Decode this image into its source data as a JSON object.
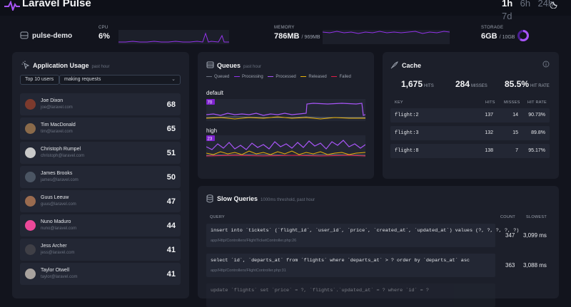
{
  "app": {
    "title": "Laravel Pulse"
  },
  "periods": [
    {
      "label": "1h",
      "active": true
    },
    {
      "label": "6h",
      "active": false
    },
    {
      "label": "24h",
      "active": false
    },
    {
      "label": "7d",
      "active": false
    }
  ],
  "servers": {
    "name": "pulse-demo",
    "cpu": {
      "label": "CPU",
      "value": "6%"
    },
    "memory": {
      "label": "MEMORY",
      "value": "786MB",
      "total": "/ 969MB"
    },
    "storage": {
      "label": "STORAGE",
      "value": "6GB",
      "total": "/ 10GB",
      "percent": 60
    }
  },
  "usage": {
    "title": "Application Usage",
    "period": "past hour",
    "limit_select": "Top 10 users",
    "type_select": "making requests",
    "users": [
      {
        "name": "Joe Dixon",
        "email": "joe@laravel.com",
        "count": "68",
        "avatar_color": "#7c3a2d"
      },
      {
        "name": "Tim MacDonald",
        "email": "tim@laravel.com",
        "count": "65",
        "avatar_color": "#8a6a4a"
      },
      {
        "name": "Christoph Rumpel",
        "email": "christoph@laravel.com",
        "count": "51",
        "avatar_color": "#c9c9c9"
      },
      {
        "name": "James Brooks",
        "email": "james@laravel.com",
        "count": "50",
        "avatar_color": "#4b5563"
      },
      {
        "name": "Guus Leeuw",
        "email": "guus@laravel.com",
        "count": "47",
        "avatar_color": "#9a6b4f"
      },
      {
        "name": "Nuno Maduro",
        "email": "nuno@laravel.com",
        "count": "44",
        "avatar_color": "#ec4899"
      },
      {
        "name": "Jess Archer",
        "email": "jess@laravel.com",
        "count": "41",
        "avatar_color": "#3f3f46"
      },
      {
        "name": "Taylor Otwell",
        "email": "taylor@laravel.com",
        "count": "41",
        "avatar_color": "#a8a29e"
      }
    ]
  },
  "queues": {
    "title": "Queues",
    "period": "past hour",
    "legend": [
      {
        "label": "Queued",
        "color": "#6b7280"
      },
      {
        "label": "Processing",
        "color": "#9333ea"
      },
      {
        "label": "Processed",
        "color": "#a855f7"
      },
      {
        "label": "Released",
        "color": "#eab308"
      },
      {
        "label": "Failed",
        "color": "#e11d48"
      }
    ],
    "items": [
      {
        "name": "default",
        "badge": "70"
      },
      {
        "name": "high",
        "badge": "23"
      }
    ]
  },
  "cache": {
    "title": "Cache",
    "hits": "1,675",
    "hits_label": "HITS",
    "misses": "284",
    "misses_label": "MISSES",
    "hit_rate": "85.5%",
    "hit_rate_label": "HIT RATE",
    "columns": [
      "KEY",
      "HITS",
      "MISSES",
      "HIT RATE"
    ],
    "rows": [
      {
        "key": "flight:2",
        "hits": "137",
        "misses": "14",
        "rate": "90.73%"
      },
      {
        "key": "flight:3",
        "hits": "132",
        "misses": "15",
        "rate": "89.8%"
      },
      {
        "key": "flight:8",
        "hits": "138",
        "misses": "7",
        "rate": "95.17%"
      }
    ]
  },
  "slow_queries": {
    "title": "Slow Queries",
    "subtitle": "1000ms threshold, past hour",
    "columns": [
      "QUERY",
      "COUNT",
      "SLOWEST"
    ],
    "rows": [
      {
        "sql": "insert into `tickets` (`flight_id`, `user_id`, `price`, `created_at`, `updated_at`) values (?, ?, ?, ?, ?)",
        "file": "app/Http/Controllers/FlightTicketController.php:26",
        "count": "347",
        "slowest": "3,099 ms"
      },
      {
        "sql": "select `id`, `departs_at` from `flights` where `departs_at` > ? order by `departs_at` asc",
        "file": "app/Http/Controllers/FlightController.php:31",
        "count": "363",
        "slowest": "3,088 ms"
      },
      {
        "sql": "update `flights` set `price` = ?, `flights`.`updated_at` = ? where `id` = ?",
        "file": "",
        "count": "",
        "slowest": ""
      }
    ]
  }
}
